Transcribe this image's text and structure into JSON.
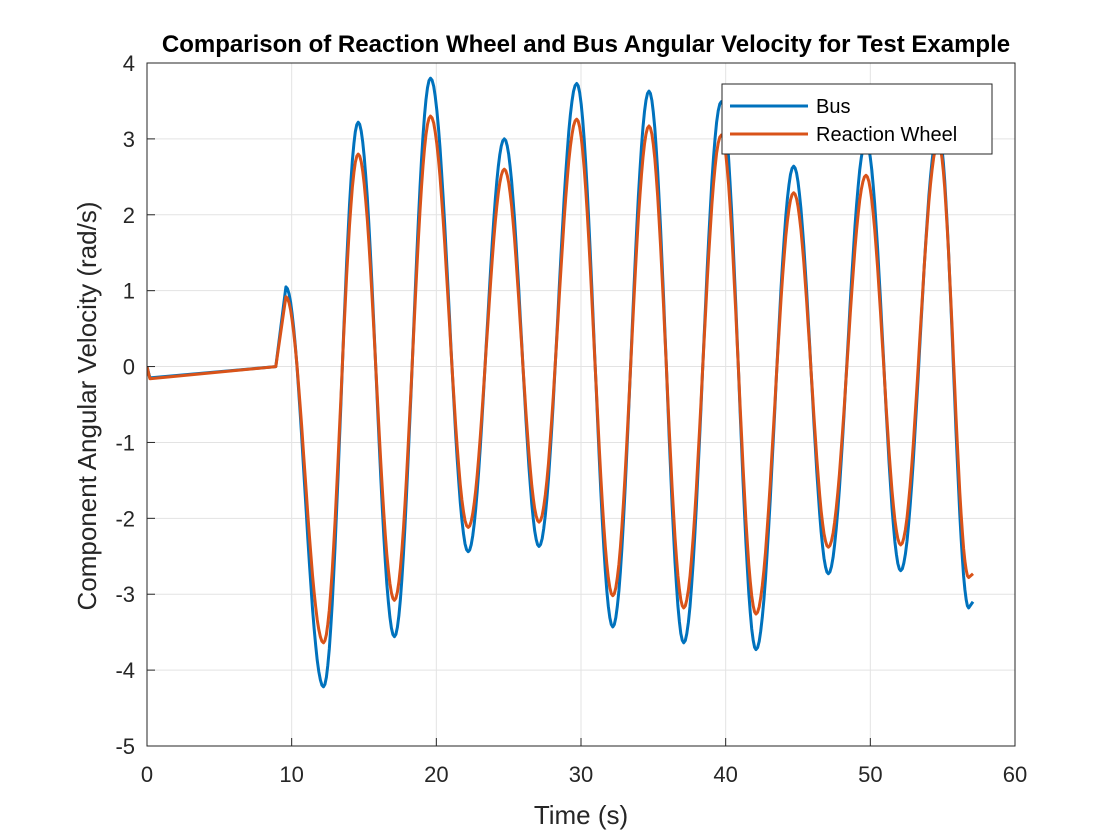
{
  "chart_data": {
    "type": "line",
    "title": "Comparison of Reaction Wheel and Bus Angular Velocity for Test Example",
    "xlabel": "Time (s)",
    "ylabel": "Component Angular Velocity (rad/s)",
    "xlim": [
      0,
      60
    ],
    "ylim": [
      -5,
      4
    ],
    "xticks": [
      0,
      10,
      20,
      30,
      40,
      50,
      60
    ],
    "yticks": [
      -5,
      -4,
      -3,
      -2,
      -1,
      0,
      1,
      2,
      3,
      4
    ],
    "xtick_labels": [
      "0",
      "10",
      "20",
      "30",
      "40",
      "50",
      "60"
    ],
    "ytick_labels": [
      "-5",
      "-4",
      "-3",
      "-2",
      "-1",
      "0",
      "1",
      "2",
      "3",
      "4"
    ],
    "grid": true,
    "legend_position": "top-right",
    "series": [
      {
        "name": "Bus",
        "color": "#0072BD",
        "points": [
          [
            0,
            0
          ],
          [
            0.2,
            -0.15
          ],
          [
            8.9,
            0.0
          ],
          [
            9.6,
            1.05
          ],
          [
            12.2,
            -4.22
          ],
          [
            14.6,
            3.22
          ],
          [
            17.1,
            -3.56
          ],
          [
            19.6,
            3.8
          ],
          [
            22.2,
            -2.44
          ],
          [
            24.7,
            3.0
          ],
          [
            27.1,
            -2.37
          ],
          [
            29.7,
            3.73
          ],
          [
            32.2,
            -3.43
          ],
          [
            34.7,
            3.63
          ],
          [
            37.1,
            -3.64
          ],
          [
            39.7,
            3.49
          ],
          [
            42.1,
            -3.73
          ],
          [
            44.7,
            2.64
          ],
          [
            47.1,
            -2.73
          ],
          [
            49.7,
            2.97
          ],
          [
            52.1,
            -2.69
          ],
          [
            54.7,
            3.1
          ],
          [
            56.8,
            -3.18
          ],
          [
            57.1,
            -3.1
          ]
        ]
      },
      {
        "name": "Reaction Wheel",
        "color": "#D95319",
        "points": [
          [
            0,
            0
          ],
          [
            0.2,
            -0.16
          ],
          [
            8.9,
            0.0
          ],
          [
            9.6,
            0.92
          ],
          [
            12.2,
            -3.64
          ],
          [
            14.6,
            2.8
          ],
          [
            17.1,
            -3.08
          ],
          [
            19.6,
            3.3
          ],
          [
            22.2,
            -2.12
          ],
          [
            24.7,
            2.6
          ],
          [
            27.1,
            -2.05
          ],
          [
            29.7,
            3.26
          ],
          [
            32.2,
            -3.02
          ],
          [
            34.7,
            3.17
          ],
          [
            37.1,
            -3.18
          ],
          [
            39.7,
            3.05
          ],
          [
            42.1,
            -3.26
          ],
          [
            44.7,
            2.29
          ],
          [
            47.1,
            -2.38
          ],
          [
            49.7,
            2.52
          ],
          [
            52.1,
            -2.35
          ],
          [
            54.7,
            2.95
          ],
          [
            56.8,
            -2.78
          ],
          [
            57.1,
            -2.73
          ]
        ]
      }
    ]
  }
}
